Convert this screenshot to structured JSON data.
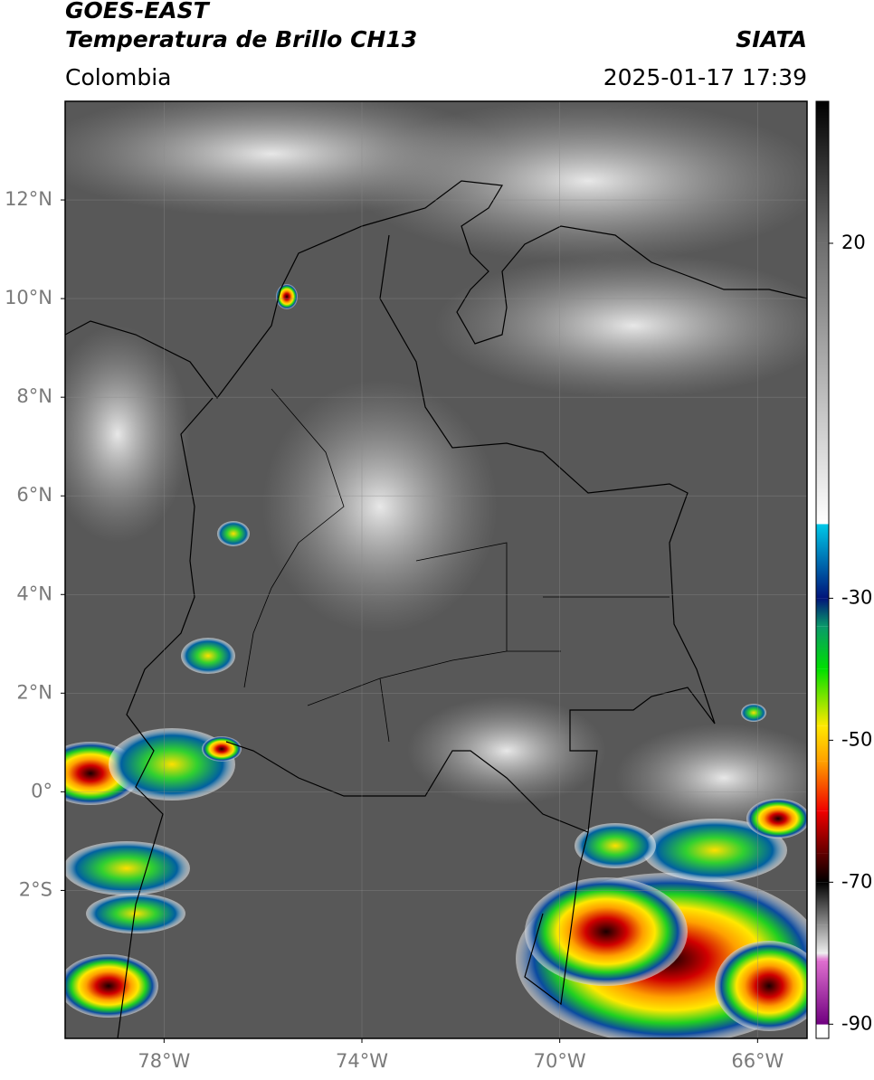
{
  "header": {
    "title_line1": "GOES-EAST",
    "title_line2": "Temperatura de Brillo CH13",
    "source": "SIATA",
    "region": "Colombia",
    "timestamp": "2025-01-17 17:39"
  },
  "map": {
    "lon_range": [
      -80,
      -65
    ],
    "lat_range": [
      -5,
      14
    ],
    "lon_ticks": [
      {
        "value": -78,
        "label": "78°W"
      },
      {
        "value": -74,
        "label": "74°W"
      },
      {
        "value": -70,
        "label": "70°W"
      },
      {
        "value": -66,
        "label": "66°W"
      }
    ],
    "lat_ticks": [
      {
        "value": 12,
        "label": "12°N"
      },
      {
        "value": 10,
        "label": "10°N"
      },
      {
        "value": 8,
        "label": "8°N"
      },
      {
        "value": 6,
        "label": "6°N"
      },
      {
        "value": 4,
        "label": "4°N"
      },
      {
        "value": 2,
        "label": "2°N"
      },
      {
        "value": 0,
        "label": "0°"
      },
      {
        "value": -2,
        "label": "2°S"
      }
    ],
    "grid": true
  },
  "colorbar": {
    "range": [
      -92,
      40
    ],
    "ticks": [
      20,
      -30,
      -50,
      -70,
      -90
    ],
    "colormap": [
      {
        "value": 40,
        "color": "#000000"
      },
      {
        "value": 20,
        "color": "#6e6e6e"
      },
      {
        "value": -19.5,
        "color": "#ffffff"
      },
      {
        "value": -19.6,
        "color": "#00c8e8"
      },
      {
        "value": -30,
        "color": "#00147a"
      },
      {
        "value": -34,
        "color": "#0a9a6a"
      },
      {
        "value": -40,
        "color": "#00e000"
      },
      {
        "value": -48,
        "color": "#ffe800"
      },
      {
        "value": -53,
        "color": "#ffa000"
      },
      {
        "value": -60,
        "color": "#f00000"
      },
      {
        "value": -66,
        "color": "#600000"
      },
      {
        "value": -70,
        "color": "#000000"
      },
      {
        "value": -76,
        "color": "#909090"
      },
      {
        "value": -80,
        "color": "#eeeeee"
      },
      {
        "value": -81,
        "color": "#e070d0"
      },
      {
        "value": -90,
        "color": "#700080"
      },
      {
        "value": -90.1,
        "color": "#ffffff"
      },
      {
        "value": -92,
        "color": "#ffffff"
      }
    ]
  }
}
